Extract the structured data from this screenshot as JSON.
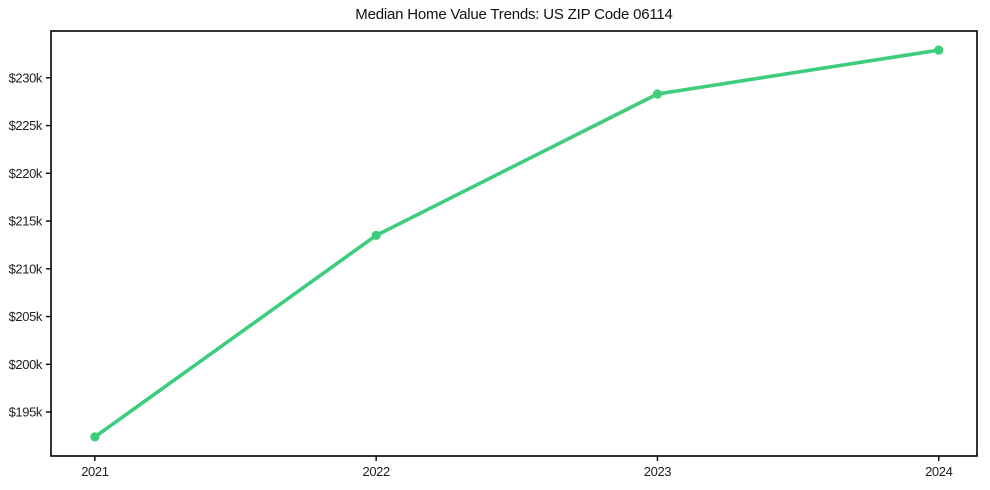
{
  "chart_data": {
    "type": "line",
    "title": "Median Home Value Trends: US ZIP Code 06114",
    "xlabel": "",
    "ylabel": "",
    "x": [
      2021,
      2022,
      2023,
      2024
    ],
    "xtick_labels": [
      "2021",
      "2022",
      "2023",
      "2024"
    ],
    "ytick_values": [
      195000,
      200000,
      205000,
      210000,
      215000,
      220000,
      225000,
      230000
    ],
    "ytick_labels": [
      "$195k",
      "$200k",
      "$205k",
      "$210k",
      "$215k",
      "$220k",
      "$225k",
      "$230k"
    ],
    "series": [
      {
        "name": "Median Home Value",
        "values": [
          192400,
          213500,
          228300,
          232900
        ],
        "color": "#3dcd7c",
        "marker": "circle"
      }
    ],
    "xlim": [
      2020.844,
      2024.136
    ],
    "ylim": [
      190400,
      234900
    ],
    "grid": false,
    "legend_position": "none",
    "background_color": "#ffffff",
    "axis_color": "#000000",
    "tick_label_color": "#212121",
    "title_color": "#111111"
  }
}
